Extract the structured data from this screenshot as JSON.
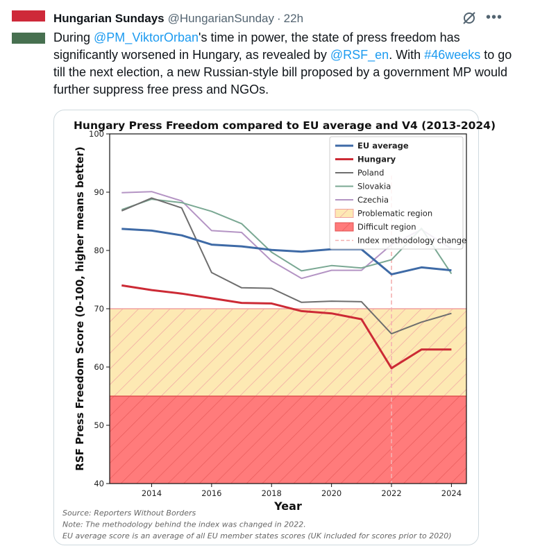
{
  "tweet": {
    "author_name": "Hungarian Sundays",
    "author_handle": "@HungarianSunday",
    "separator": "·",
    "time": "22h",
    "more_icon": "more-horizontal-icon",
    "grok_icon": "grok-icon",
    "avatar": "hungarian-flag-avatar",
    "text": {
      "t1": "During ",
      "mention1": "@PM_ViktorOrban",
      "t2": "'s time in power, the state of press freedom has significantly worsened in Hungary, as revealed by ",
      "mention2": "@RSF_en",
      "t3": ". With ",
      "hashtag": "#46weeks",
      "t4": " to go till the next election, a new Russian-style bill proposed by a government MP would further suppress free press and NGOs."
    },
    "colors": {
      "link": "#1d9bf0",
      "muted": "#536471"
    }
  },
  "chart_data": {
    "type": "line",
    "title": "Hungary Press Freedom compared to EU average and V4 (2013-2024)",
    "xlabel": "Year",
    "ylabel": "RSF Press Freedom Score (0-100, higher means better)",
    "x": [
      2013,
      2014,
      2015,
      2016,
      2017,
      2018,
      2019,
      2020,
      2021,
      2022,
      2023,
      2024
    ],
    "xlim": [
      2012.6,
      2024.5
    ],
    "ylim": [
      40,
      100
    ],
    "xticks": [
      2014,
      2016,
      2018,
      2020,
      2022,
      2024
    ],
    "yticks": [
      40,
      50,
      60,
      70,
      80,
      90,
      100
    ],
    "series": [
      {
        "name": "EU average",
        "color": "#3e6aa6",
        "width": 3,
        "bold": true,
        "values": [
          83.7,
          83.4,
          82.6,
          81.0,
          80.7,
          80.1,
          79.8,
          80.2,
          80.2,
          75.9,
          77.1,
          76.6
        ]
      },
      {
        "name": "Hungary",
        "color": "#cc2a35",
        "width": 3,
        "bold": true,
        "values": [
          74.0,
          73.2,
          72.6,
          71.8,
          71.0,
          70.9,
          69.6,
          69.2,
          68.2,
          59.8,
          63.0,
          63.0
        ]
      },
      {
        "name": "Poland",
        "color": "#6e6e6e",
        "width": 2,
        "bold": false,
        "values": [
          86.8,
          89.0,
          87.3,
          76.2,
          73.6,
          73.5,
          71.1,
          71.3,
          71.2,
          65.7,
          67.7,
          69.2
        ]
      },
      {
        "name": "Slovakia",
        "color": "#7aa893",
        "width": 2,
        "bold": false,
        "values": [
          87.0,
          88.8,
          88.2,
          86.7,
          84.6,
          79.7,
          76.5,
          77.4,
          77.0,
          78.4,
          83.8,
          76.0
        ]
      },
      {
        "name": "Czechia",
        "color": "#b494c4",
        "width": 2,
        "bold": false,
        "values": [
          89.9,
          90.1,
          88.5,
          83.4,
          83.1,
          78.2,
          75.2,
          76.6,
          76.6,
          81.0,
          83.6,
          80.3
        ]
      }
    ],
    "regions": [
      {
        "name": "Problematic region",
        "from": 55,
        "to": 70,
        "color": "#fde9b3",
        "edge": "#f0a0a0"
      },
      {
        "name": "Difficult region",
        "from": 40,
        "to": 55,
        "color": "#ff7b7b",
        "edge": "#e05050"
      }
    ],
    "vline": {
      "name": "Index methodology change",
      "x": 2022,
      "color": "#f4b0b0"
    },
    "legend_position": "top-right",
    "grid": false,
    "notes": [
      "Source: Reporters Without Borders",
      "Note: The methodology behind the index was changed in 2022.",
      "EU average score is an average of all EU member states scores (UK included for scores prior to 2020)"
    ]
  }
}
